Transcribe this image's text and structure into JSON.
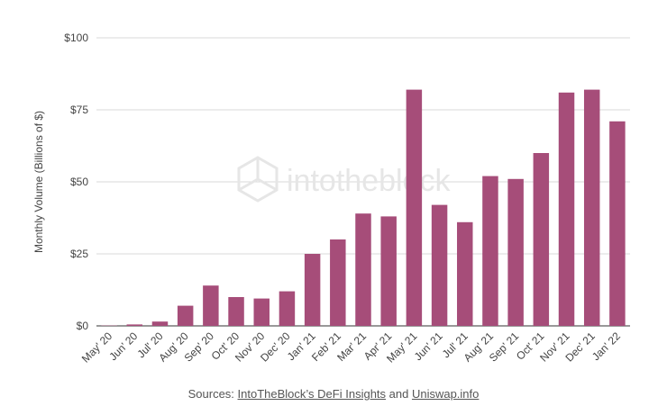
{
  "chart_data": {
    "type": "bar",
    "title": "",
    "xlabel": "",
    "ylabel": "Monthly Volume (Billions of $)",
    "categories": [
      "May' 20",
      "Jun' 20",
      "Jul' 20",
      "Aug' 20",
      "Sep' 20",
      "Oct' 20",
      "Nov' 20",
      "Dec' 20",
      "Jan' 21",
      "Feb' 21",
      "Mar' 21",
      "Apr' 21",
      "May' 21",
      "Jun' 21",
      "Jul' 21",
      "Aug' 21",
      "Sep' 21",
      "Oct' 21",
      "Nov' 21",
      "Dec' 21",
      "Jan' 22"
    ],
    "values": [
      0.1,
      0.5,
      1.5,
      7,
      14,
      10,
      9.5,
      12,
      25,
      30,
      39,
      38,
      82,
      42,
      36,
      52,
      51,
      60,
      81,
      82,
      71
    ],
    "ylim": [
      0,
      100
    ],
    "yticks": [
      0,
      25,
      50,
      75,
      100
    ],
    "ytick_labels": [
      "$0",
      "$25",
      "$50",
      "$75",
      "$100"
    ],
    "grid": true,
    "legend": "none",
    "bar_color": "#a64d79",
    "grid_color": "#d9d9d9"
  },
  "watermark": {
    "text": "intotheblock",
    "icon": "cube-logo-icon"
  },
  "source": {
    "prefix": "Sources: ",
    "link1": "IntoTheBlock’s DeFi Insights",
    "middle": " and ",
    "link2": "Uniswap.info"
  }
}
